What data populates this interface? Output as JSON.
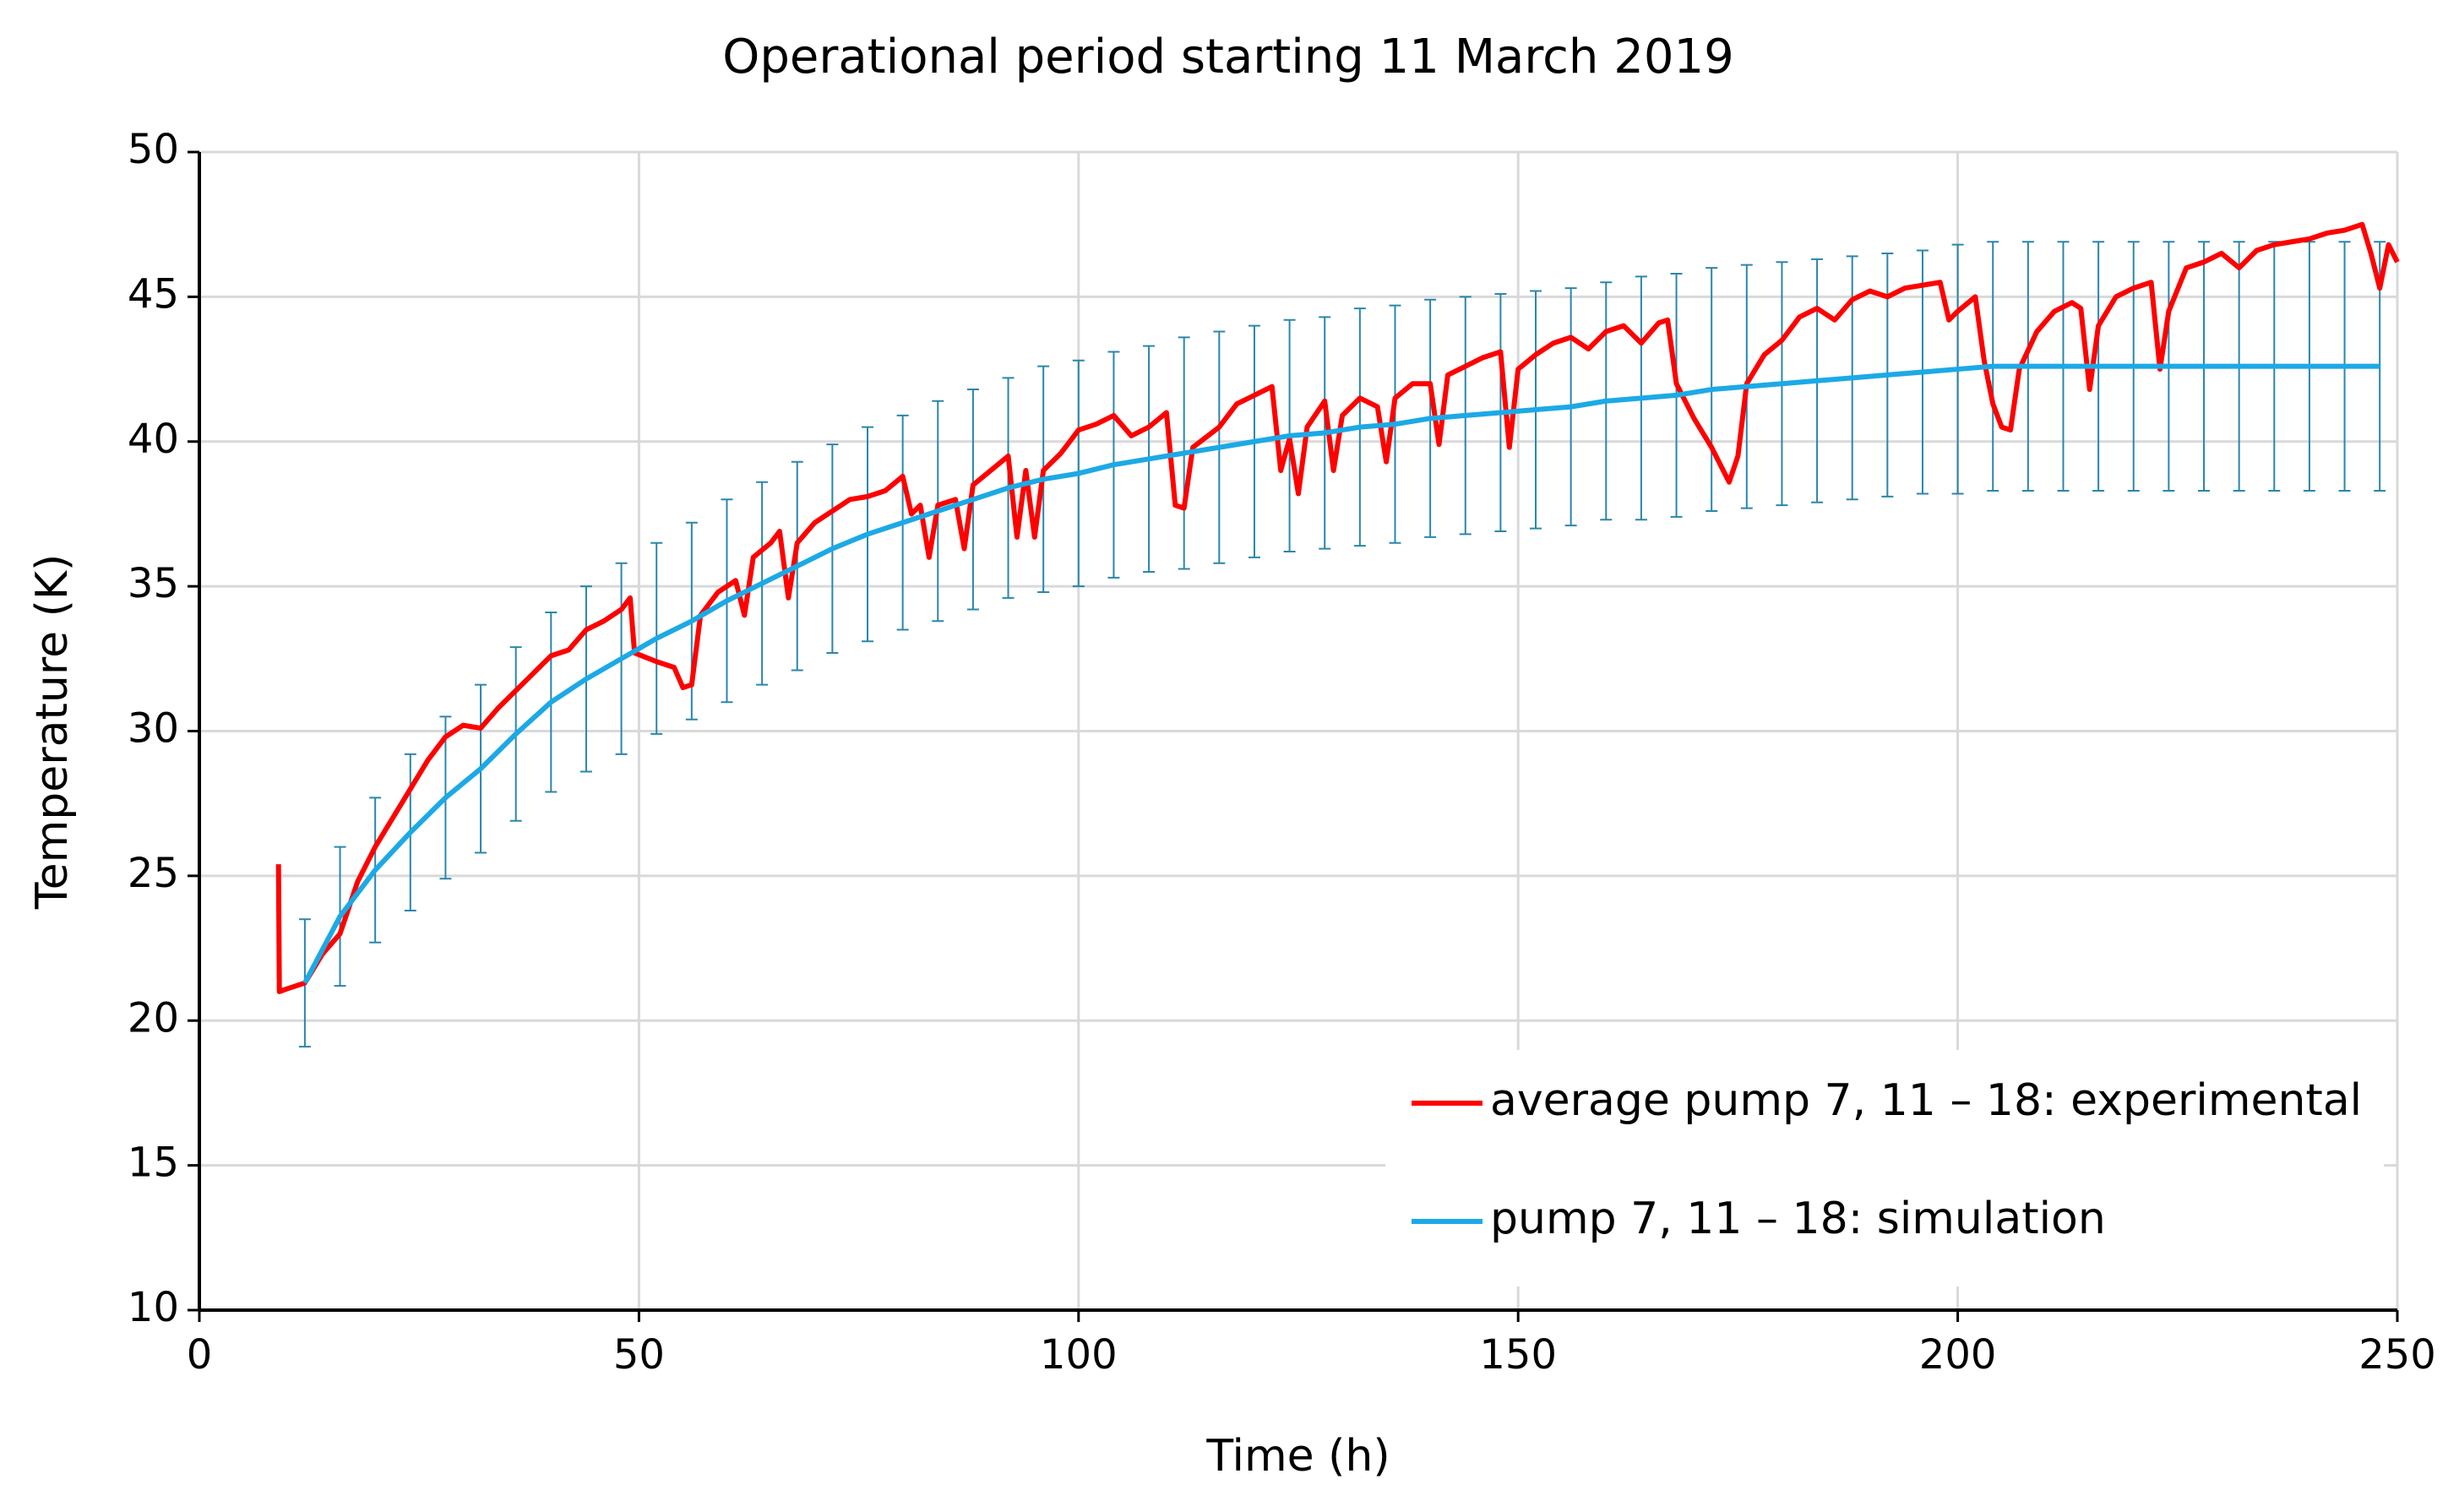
{
  "chart_data": {
    "type": "line",
    "title": "Operational period starting 11 March 2019",
    "x_label": "Time (h)",
    "y_label": "Temperature (K)",
    "xlim": [
      0,
      250
    ],
    "xticks": [
      0,
      50,
      100,
      150,
      200,
      250
    ],
    "ylim": [
      10,
      50
    ],
    "yticks": [
      10,
      15,
      20,
      25,
      30,
      35,
      40,
      45,
      50
    ],
    "grid": true,
    "legend": "lower right",
    "series": [
      {
        "name": "average pump 7, 11 – 18: experimental",
        "color": "#ff0000",
        "x": [
          9,
          9.1,
          10,
          12,
          14,
          16,
          18,
          20,
          22,
          24,
          26,
          28,
          30,
          32,
          34,
          36,
          38,
          40,
          42,
          44,
          46,
          48,
          49,
          49.5,
          52,
          54,
          55,
          56,
          57,
          59,
          61,
          62,
          63,
          65,
          66,
          67,
          68,
          70,
          72,
          74,
          76,
          78,
          80,
          81,
          82,
          83,
          84,
          86,
          87,
          88,
          90,
          92,
          93,
          94,
          95,
          96,
          98,
          100,
          102,
          104,
          106,
          108,
          110,
          111,
          112,
          113,
          116,
          118,
          120,
          122,
          123,
          124,
          125,
          126,
          128,
          129,
          130,
          132,
          134,
          135,
          136,
          138,
          140,
          141,
          142,
          144,
          146,
          148,
          149,
          150,
          152,
          154,
          156,
          158,
          160,
          162,
          164,
          166,
          167,
          168,
          170,
          172,
          174,
          175,
          176,
          178,
          180,
          182,
          184,
          186,
          188,
          190,
          192,
          194,
          196,
          198,
          199,
          200,
          202,
          203,
          204,
          205,
          206,
          207,
          209,
          211,
          213,
          214,
          215,
          216,
          218,
          220,
          222,
          223,
          224,
          226,
          228,
          230,
          232,
          234,
          236,
          238,
          240,
          242,
          244,
          246,
          247,
          248,
          249,
          250
        ],
        "values": [
          25.4,
          21.0,
          21.1,
          21.3,
          22.3,
          23.0,
          24.8,
          26.0,
          27.0,
          28.0,
          29.0,
          29.8,
          30.2,
          30.1,
          30.8,
          31.4,
          32.0,
          32.6,
          32.8,
          33.5,
          33.8,
          34.2,
          34.6,
          32.7,
          32.4,
          32.2,
          31.5,
          31.6,
          34.0,
          34.8,
          35.2,
          34.0,
          36.0,
          36.5,
          36.9,
          34.6,
          36.5,
          37.2,
          37.6,
          38.0,
          38.1,
          38.3,
          38.8,
          37.5,
          37.8,
          36.0,
          37.8,
          38.0,
          36.3,
          38.5,
          39.0,
          39.5,
          36.7,
          39.0,
          36.7,
          39.0,
          39.6,
          40.4,
          40.6,
          40.9,
          40.2,
          40.5,
          41.0,
          37.8,
          37.7,
          39.8,
          40.5,
          41.3,
          41.6,
          41.9,
          39.0,
          40.1,
          38.2,
          40.5,
          41.4,
          39.0,
          40.9,
          41.5,
          41.2,
          39.3,
          41.5,
          42.0,
          42.0,
          39.9,
          42.3,
          42.6,
          42.9,
          43.1,
          39.8,
          42.5,
          43.0,
          43.4,
          43.6,
          43.2,
          43.8,
          44.0,
          43.4,
          44.1,
          44.2,
          42.0,
          40.8,
          39.8,
          38.6,
          39.5,
          42.0,
          43.0,
          43.5,
          44.3,
          44.6,
          44.2,
          44.9,
          45.2,
          45.0,
          45.3,
          45.4,
          45.5,
          44.2,
          44.5,
          45.0,
          42.8,
          41.3,
          40.5,
          40.4,
          42.5,
          43.8,
          44.5,
          44.8,
          44.6,
          41.8,
          44.0,
          45.0,
          45.3,
          45.5,
          42.5,
          44.5,
          46.0,
          46.2,
          46.5,
          46.0,
          46.6,
          46.8,
          46.9,
          47.0,
          47.2,
          47.3,
          47.5,
          46.5,
          45.3,
          46.8,
          46.2
        ]
      },
      {
        "name": "pump 7, 11 – 18: simulation",
        "color": "#1ca9e6",
        "error_color": "#2a86ad",
        "x": [
          12,
          16,
          20,
          24,
          28,
          32,
          36,
          40,
          44,
          48,
          52,
          56,
          60,
          64,
          68,
          72,
          76,
          80,
          84,
          88,
          92,
          96,
          100,
          104,
          108,
          112,
          116,
          120,
          124,
          128,
          132,
          136,
          140,
          144,
          148,
          152,
          156,
          160,
          164,
          168,
          172,
          176,
          180,
          184,
          188,
          192,
          196,
          200,
          204,
          208,
          212,
          216,
          220,
          224,
          228,
          232,
          236,
          240,
          244,
          248
        ],
        "values": [
          21.3,
          23.6,
          25.2,
          26.5,
          27.7,
          28.7,
          29.9,
          31.0,
          31.8,
          32.5,
          33.2,
          33.8,
          34.5,
          35.1,
          35.7,
          36.3,
          36.8,
          37.2,
          37.6,
          38.0,
          38.4,
          38.7,
          38.9,
          39.2,
          39.4,
          39.6,
          39.8,
          40.0,
          40.2,
          40.3,
          40.5,
          40.6,
          40.8,
          40.9,
          41.0,
          41.1,
          41.2,
          41.4,
          41.5,
          41.6,
          41.8,
          41.9,
          42.0,
          42.1,
          42.2,
          42.3,
          42.4,
          42.5,
          42.6,
          42.6,
          42.6,
          42.6,
          42.6,
          42.6,
          42.6,
          42.6,
          42.6,
          42.6,
          42.6,
          42.6
        ],
        "errors": [
          2.2,
          2.4,
          2.5,
          2.7,
          2.8,
          2.9,
          3.0,
          3.1,
          3.2,
          3.3,
          3.3,
          3.4,
          3.5,
          3.5,
          3.6,
          3.6,
          3.7,
          3.7,
          3.8,
          3.8,
          3.8,
          3.9,
          3.9,
          3.9,
          3.9,
          4.0,
          4.0,
          4.0,
          4.0,
          4.0,
          4.1,
          4.1,
          4.1,
          4.1,
          4.1,
          4.1,
          4.1,
          4.1,
          4.2,
          4.2,
          4.2,
          4.2,
          4.2,
          4.2,
          4.2,
          4.2,
          4.2,
          4.3,
          4.3,
          4.3,
          4.3,
          4.3,
          4.3,
          4.3,
          4.3,
          4.3,
          4.3,
          4.3,
          4.3,
          4.3
        ]
      }
    ]
  }
}
